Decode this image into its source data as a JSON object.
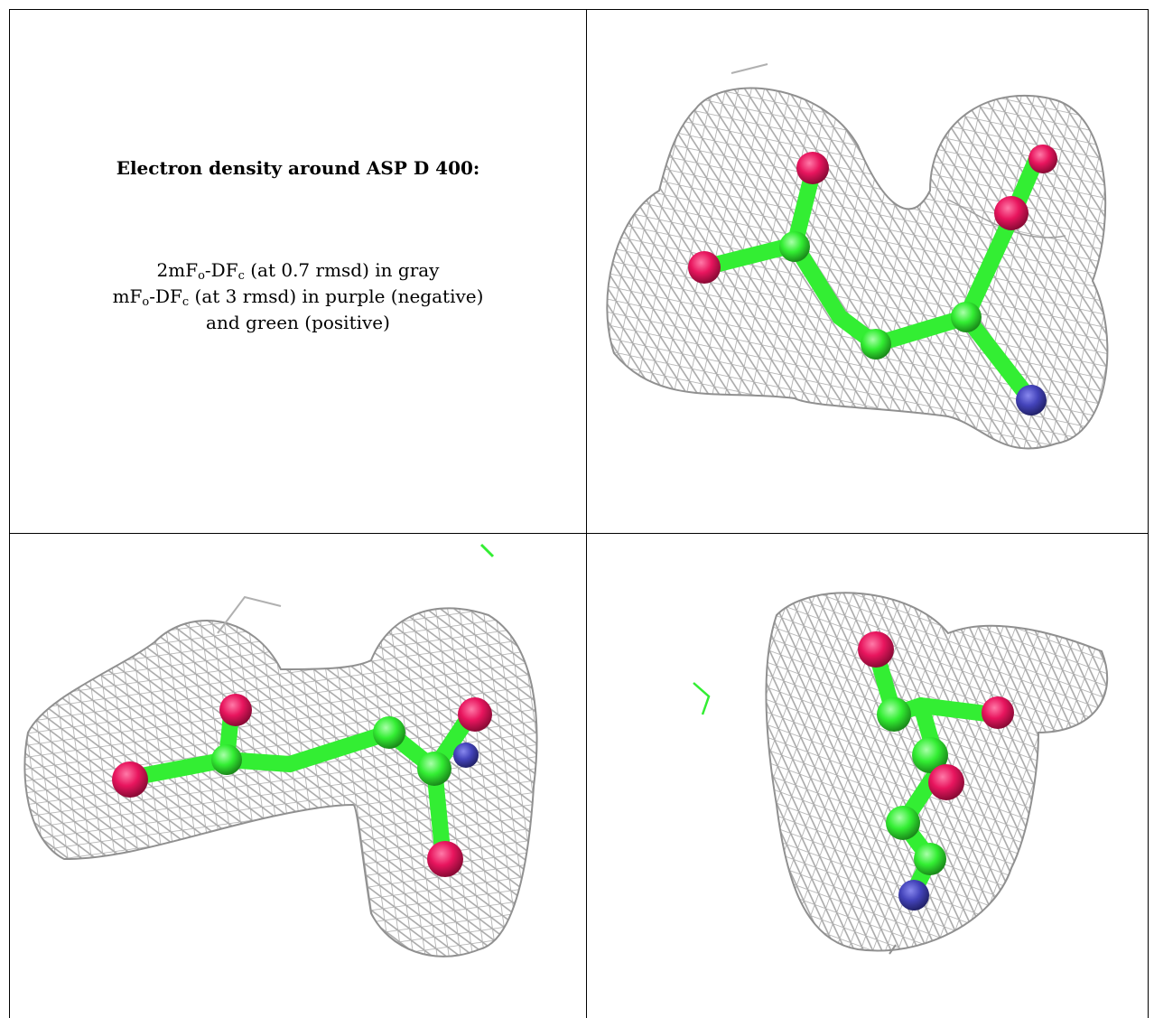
{
  "title": "Electron density around ASP D 400:",
  "legend": {
    "line1": {
      "a": "2mF",
      "a_sub": "o",
      "b": "-DF",
      "b_sub": "c",
      "rest": " (at 0.7 rmsd) in gray"
    },
    "line2": {
      "a": "mF",
      "a_sub": "o",
      "b": "-DF",
      "b_sub": "c",
      "rest": " (at 3 rmsd) in purple (negative)"
    },
    "line3": "and green (positive)"
  },
  "colors": {
    "mesh": "#a8a8a8",
    "carbon": "#33ee33",
    "oxygen": "#e8155e",
    "nitrogen": "#4444bb",
    "border": "#000000"
  },
  "panels": [
    {
      "id": "view-1",
      "image": "density-mesh-view-top-right"
    },
    {
      "id": "view-2",
      "image": "density-mesh-view-bottom-left"
    },
    {
      "id": "view-3",
      "image": "density-mesh-view-bottom-right"
    }
  ]
}
